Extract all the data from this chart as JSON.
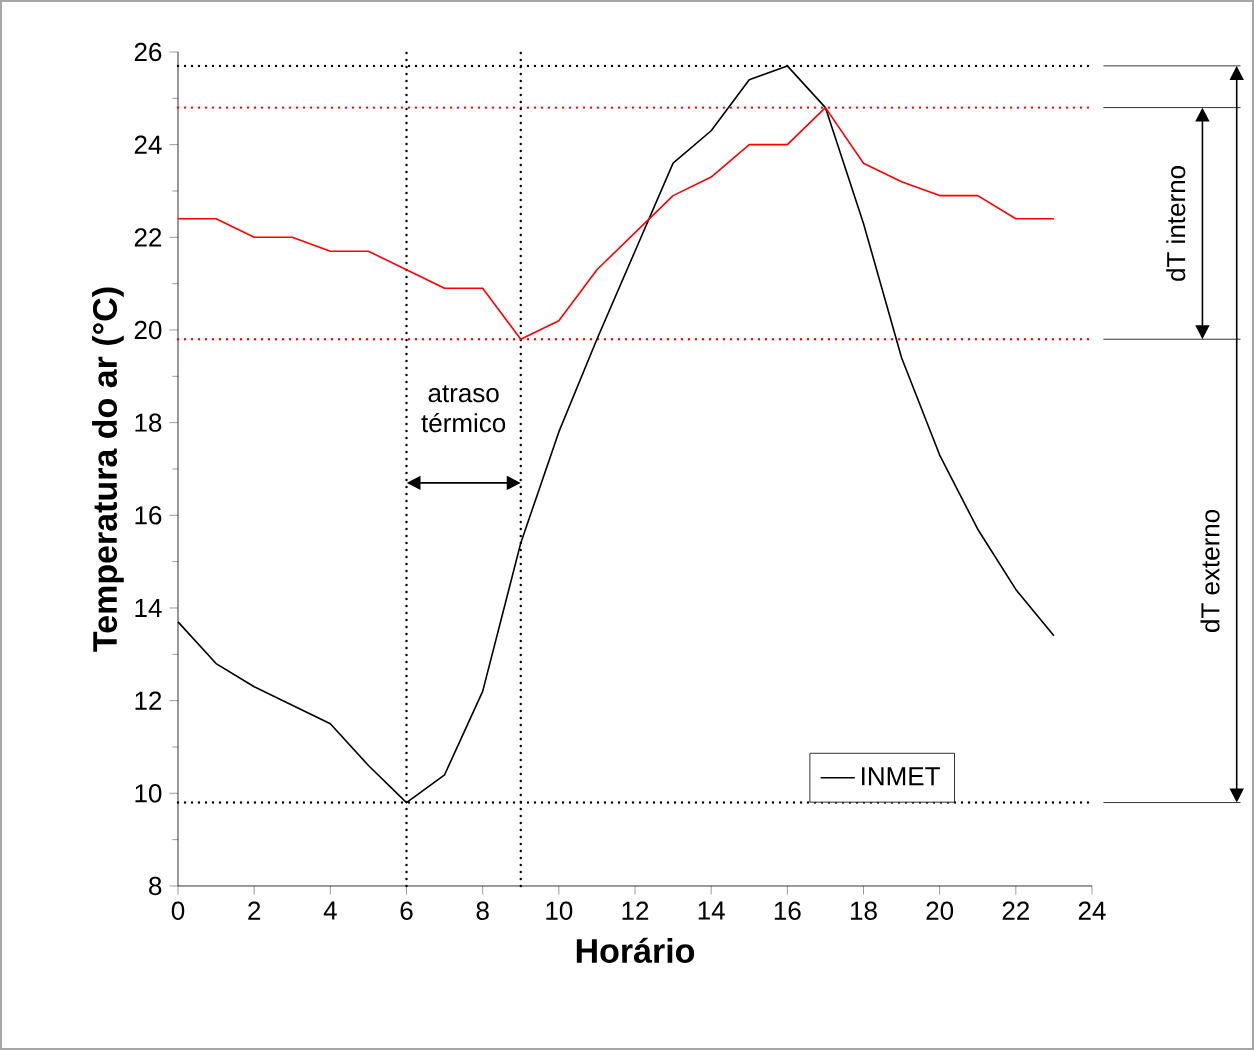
{
  "chart_data": {
    "type": "line",
    "xlabel": "Horário",
    "ylabel": "Temperatura do ar (°C)",
    "x": [
      0,
      1,
      2,
      3,
      4,
      5,
      6,
      7,
      8,
      9,
      10,
      11,
      12,
      13,
      14,
      15,
      16,
      17,
      18,
      19,
      20,
      21,
      22,
      23
    ],
    "series": [
      {
        "name": "INMET",
        "color": "#000000",
        "values": [
          13.7,
          12.8,
          12.3,
          11.9,
          11.5,
          10.6,
          9.8,
          10.4,
          12.2,
          15.4,
          17.8,
          19.8,
          21.7,
          23.6,
          24.3,
          25.4,
          25.7,
          24.8,
          22.3,
          19.4,
          17.3,
          15.7,
          14.4,
          13.4
        ]
      },
      {
        "color": "#ff0000",
        "values": [
          22.4,
          22.4,
          22.0,
          22.0,
          21.7,
          21.7,
          21.3,
          20.9,
          20.9,
          19.8,
          20.2,
          21.3,
          22.1,
          22.9,
          23.3,
          24.0,
          24.0,
          24.8,
          23.6,
          23.2,
          22.9,
          22.9,
          22.4,
          22.4
        ]
      }
    ],
    "xlim": [
      0,
      24
    ],
    "ylim": [
      8,
      26
    ],
    "xticks": [
      0,
      2,
      4,
      6,
      8,
      10,
      12,
      14,
      16,
      18,
      20,
      22,
      24
    ],
    "yticks": [
      8,
      10,
      12,
      14,
      16,
      18,
      20,
      22,
      24,
      26
    ],
    "ref_lines": [
      {
        "axis": "y",
        "value": 25.7,
        "color": "#000000",
        "line_style": "dotted"
      },
      {
        "axis": "y",
        "value": 24.8,
        "color": "#ff0000",
        "line_style": "dotted"
      },
      {
        "axis": "y",
        "value": 19.8,
        "color": "#ff0000",
        "line_style": "dotted"
      },
      {
        "axis": "y",
        "value": 9.8,
        "color": "#000000",
        "line_style": "dotted"
      },
      {
        "axis": "x",
        "value": 6,
        "color": "#000000",
        "line_style": "dotted"
      },
      {
        "axis": "x",
        "value": 9,
        "color": "#000000",
        "line_style": "dotted"
      }
    ],
    "annotations": [
      "atraso térmico",
      "dT interno",
      "dT externo"
    ],
    "legend": "bottom right",
    "marker": "none",
    "line_style": "solid"
  }
}
